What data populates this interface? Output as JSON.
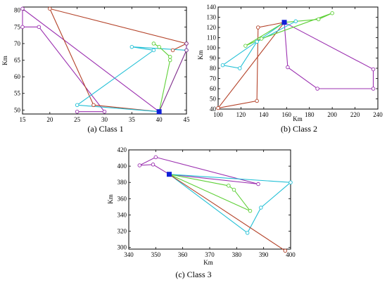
{
  "figure": {
    "panels": [
      {
        "caption": "(a) Class 1",
        "ylabel": "Km",
        "xlabel": "",
        "xlim": [
          15,
          45
        ],
        "ylim": [
          48.8,
          81
        ],
        "xticks": [
          15,
          20,
          25,
          30,
          35,
          40,
          45
        ],
        "yticks": [
          50,
          55,
          60,
          65,
          70,
          75,
          80
        ],
        "depot": [
          40,
          49.5
        ],
        "routes": [
          {
            "color": "#9b30b0",
            "points": [
              [
                40,
                49.5
              ],
              [
                15,
                80.5
              ],
              [
                15,
                75
              ],
              [
                18,
                75
              ],
              [
                30,
                49.5
              ],
              [
                25,
                49.5
              ]
            ]
          },
          {
            "color": "#b4432a",
            "points": [
              [
                40,
                49.5
              ],
              [
                28,
                51.5
              ],
              [
                20,
                80.5
              ],
              [
                45,
                70
              ],
              [
                42.5,
                68
              ]
            ]
          },
          {
            "color": "#22c0d6",
            "points": [
              [
                40,
                49.5
              ],
              [
                25,
                51.5
              ],
              [
                39,
                68
              ],
              [
                35,
                69
              ],
              [
                45,
                68
              ]
            ]
          },
          {
            "color": "#5fd038",
            "points": [
              [
                40,
                49.5
              ],
              [
                42,
                65
              ],
              [
                42,
                66
              ],
              [
                40,
                69
              ],
              [
                39,
                70
              ]
            ]
          },
          {
            "color": "#7f2d8c",
            "points": [
              [
                40,
                49.5
              ],
              [
                45,
                68
              ],
              [
                45,
                70
              ]
            ]
          }
        ]
      },
      {
        "caption": "(b) Class 2",
        "ylabel": "Km",
        "xlabel": "Km",
        "xlim": [
          100,
          240
        ],
        "ylim": [
          40,
          140
        ],
        "xticks": [
          100,
          120,
          140,
          160,
          180,
          200,
          220,
          240
        ],
        "yticks": [
          40,
          50,
          60,
          70,
          80,
          90,
          100,
          110,
          120,
          130,
          140
        ],
        "depot": [
          158,
          125
        ],
        "routes": [
          {
            "color": "#9b30b0",
            "points": [
              [
                158,
                125
              ],
              [
                236,
                79
              ],
              [
                236,
                60
              ],
              [
                187,
                60
              ],
              [
                161,
                81
              ],
              [
                158,
                125
              ]
            ]
          },
          {
            "color": "#b4432a",
            "points": [
              [
                158,
                125
              ],
              [
                135,
                120
              ],
              [
                134,
                48
              ],
              [
                100,
                41
              ],
              [
                158,
                125
              ]
            ]
          },
          {
            "color": "#22c0d6",
            "points": [
              [
                158,
                125
              ],
              [
                104,
                83
              ],
              [
                119,
                80
              ],
              [
                134,
                106
              ],
              [
                168,
                126
              ]
            ]
          },
          {
            "color": "#5fd038",
            "points": [
              [
                158,
                125
              ],
              [
                124,
                102
              ],
              [
                138,
                109
              ],
              [
                200,
                134
              ],
              [
                188,
                128
              ],
              [
                158,
                125
              ]
            ]
          }
        ]
      },
      {
        "caption": "(c) Class 3",
        "ylabel": "Km",
        "xlabel": "Km",
        "xlim": [
          340,
          400
        ],
        "ylim": [
          298,
          420
        ],
        "xticks": [
          340,
          350,
          360,
          370,
          380,
          390,
          400
        ],
        "yticks": [
          300,
          320,
          340,
          360,
          380,
          400,
          420
        ],
        "depot": [
          355,
          390
        ],
        "routes": [
          {
            "color": "#9b30b0",
            "points": [
              [
                355,
                390
              ],
              [
                349,
                402
              ],
              [
                344,
                401
              ],
              [
                350,
                411
              ],
              [
                388,
                378
              ],
              [
                355,
                390
              ]
            ]
          },
          {
            "color": "#22c0d6",
            "points": [
              [
                355,
                390
              ],
              [
                400,
                380
              ],
              [
                389,
                349
              ],
              [
                384,
                318
              ],
              [
                355,
                390
              ]
            ]
          },
          {
            "color": "#5fd038",
            "points": [
              [
                355,
                390
              ],
              [
                377,
                376
              ],
              [
                379,
                371
              ],
              [
                385,
                345
              ],
              [
                355,
                390
              ]
            ]
          },
          {
            "color": "#b4432a",
            "points": [
              [
                355,
                390
              ],
              [
                398,
                296
              ]
            ]
          }
        ]
      }
    ]
  },
  "chart_data": [
    {
      "type": "scatter",
      "title": "(a) Class 1",
      "xlabel": "",
      "ylabel": "Km",
      "xlim": [
        15,
        45
      ],
      "ylim": [
        48.8,
        81
      ],
      "grid": false,
      "depot": [
        40,
        49.5
      ],
      "series": [
        {
          "values": [
            [
              40,
              49.5
            ],
            [
              15,
              80.5
            ],
            [
              15,
              75
            ],
            [
              18,
              75
            ],
            [
              30,
              49.5
            ],
            [
              25,
              49.5
            ]
          ]
        },
        {
          "values": [
            [
              40,
              49.5
            ],
            [
              28,
              51.5
            ],
            [
              20,
              80.5
            ],
            [
              45,
              70
            ],
            [
              42.5,
              68
            ]
          ]
        },
        {
          "values": [
            [
              40,
              49.5
            ],
            [
              25,
              51.5
            ],
            [
              39,
              68
            ],
            [
              35,
              69
            ],
            [
              45,
              68
            ]
          ]
        },
        {
          "values": [
            [
              40,
              49.5
            ],
            [
              42,
              65
            ],
            [
              42,
              66
            ],
            [
              40,
              69
            ],
            [
              39,
              70
            ]
          ]
        },
        {
          "values": [
            [
              40,
              49.5
            ],
            [
              45,
              68
            ],
            [
              45,
              70
            ]
          ]
        }
      ]
    },
    {
      "type": "scatter",
      "title": "(b) Class 2",
      "xlabel": "Km",
      "ylabel": "Km",
      "xlim": [
        100,
        240
      ],
      "ylim": [
        40,
        140
      ],
      "grid": false,
      "depot": [
        158,
        125
      ],
      "series": [
        {
          "values": [
            [
              158,
              125
            ],
            [
              236,
              79
            ],
            [
              236,
              60
            ],
            [
              187,
              60
            ],
            [
              161,
              81
            ],
            [
              158,
              125
            ]
          ]
        },
        {
          "values": [
            [
              158,
              125
            ],
            [
              135,
              120
            ],
            [
              134,
              48
            ],
            [
              100,
              41
            ],
            [
              158,
              125
            ]
          ]
        },
        {
          "values": [
            [
              158,
              125
            ],
            [
              104,
              83
            ],
            [
              119,
              80
            ],
            [
              134,
              106
            ],
            [
              168,
              126
            ]
          ]
        },
        {
          "values": [
            [
              158,
              125
            ],
            [
              124,
              102
            ],
            [
              138,
              109
            ],
            [
              200,
              134
            ],
            [
              188,
              128
            ],
            [
              158,
              125
            ]
          ]
        }
      ]
    },
    {
      "type": "scatter",
      "title": "(c) Class 3",
      "xlabel": "Km",
      "ylabel": "Km",
      "xlim": [
        340,
        400
      ],
      "ylim": [
        298,
        420
      ],
      "grid": false,
      "depot": [
        355,
        390
      ],
      "series": [
        {
          "values": [
            [
              355,
              390
            ],
            [
              349,
              402
            ],
            [
              344,
              401
            ],
            [
              350,
              411
            ],
            [
              388,
              378
            ],
            [
              355,
              390
            ]
          ]
        },
        {
          "values": [
            [
              355,
              390
            ],
            [
              400,
              380
            ],
            [
              389,
              349
            ],
            [
              384,
              318
            ],
            [
              355,
              390
            ]
          ]
        },
        {
          "values": [
            [
              355,
              390
            ],
            [
              377,
              376
            ],
            [
              379,
              371
            ],
            [
              385,
              345
            ],
            [
              355,
              390
            ]
          ]
        },
        {
          "values": [
            [
              355,
              390
            ],
            [
              398,
              296
            ]
          ]
        }
      ]
    }
  ]
}
